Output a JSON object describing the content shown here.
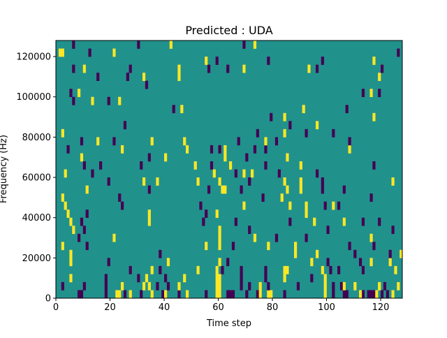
{
  "chart_data": {
    "type": "heatmap",
    "title": "Predicted : UDA",
    "xlabel": "Time step",
    "ylabel": "Frequency (Hz)",
    "xlim": [
      0,
      128
    ],
    "ylim": [
      0,
      128000
    ],
    "xticks": [
      "0",
      "20",
      "40",
      "60",
      "80",
      "100",
      "120"
    ],
    "xtick_values": [
      0,
      20,
      40,
      60,
      80,
      100,
      120
    ],
    "yticks": [
      "0",
      "20000",
      "40000",
      "60000",
      "80000",
      "100000",
      "120000"
    ],
    "ytick_values": [
      0,
      20000,
      40000,
      60000,
      80000,
      100000,
      120000
    ],
    "n_time_steps": 128,
    "n_freq_bins": 32,
    "freq_bin_hz": 4000,
    "colors": {
      "-1": "#440154",
      "0": "#21918c",
      "1": "#fde725"
    },
    "default_value": 0,
    "rows_note_values": "per frequency bin (0 = lowest): time steps with value -1 (neg) and +1 (pos)",
    "rows": [
      {
        "bin": 0,
        "neg": [
          8,
          9,
          18,
          25,
          31,
          39,
          45,
          55,
          63,
          64,
          65,
          70,
          74,
          84,
          102,
          106,
          107,
          113,
          115,
          116,
          117,
          120,
          122
        ],
        "pos": [
          22,
          23,
          27,
          35,
          40,
          48,
          59,
          60,
          75,
          78,
          79,
          99,
          112,
          118,
          124
        ]
      },
      {
        "bin": 1,
        "neg": [
          2,
          10,
          18,
          37,
          41,
          68,
          71,
          78,
          89,
          102,
          105,
          121
        ],
        "pos": [
          24,
          32,
          34,
          45,
          59,
          60,
          75,
          99,
          106,
          110,
          119,
          126
        ]
      },
      {
        "bin": 2,
        "neg": [
          18,
          30,
          40,
          68,
          77,
          94
        ],
        "pos": [
          5,
          33,
          47,
          59,
          60,
          84,
          99
        ]
      },
      {
        "bin": 3,
        "neg": [
          27,
          38,
          61,
          68,
          77,
          101,
          104,
          113
        ],
        "pos": [
          35,
          52,
          59,
          84,
          85,
          98,
          125
        ]
      },
      {
        "bin": 4,
        "neg": [
          19,
          63,
          100,
          112
        ],
        "pos": [
          5,
          41,
          60,
          94,
          116,
          123
        ]
      },
      {
        "bin": 5,
        "neg": [
          38,
          110,
          123
        ],
        "pos": [
          5,
          88,
          96,
          127
        ]
      },
      {
        "bin": 6,
        "neg": [
          11,
          65,
          108,
          117
        ],
        "pos": [
          2,
          55,
          60,
          78,
          88
        ]
      },
      {
        "bin": 7,
        "neg": [
          8,
          81,
          92
        ],
        "pos": [
          21,
          60,
          73,
          116
        ]
      },
      {
        "bin": 8,
        "neg": [
          10,
          71,
          100,
          124
        ],
        "pos": [
          6,
          60
        ]
      },
      {
        "bin": 9,
        "neg": [
          9,
          54,
          66,
          86,
          113,
          119
        ],
        "pos": [
          5,
          34,
          95,
          106
        ]
      },
      {
        "bin": 10,
        "neg": [
          11,
          55
        ],
        "pos": [
          4,
          34,
          59,
          92
        ]
      },
      {
        "bin": 11,
        "neg": [
          24,
          53,
          99,
          104
        ],
        "pos": [
          3,
          69,
          86,
          92,
          102
        ]
      },
      {
        "bin": 12,
        "neg": [
          23,
          76,
          116
        ],
        "pos": [
          2,
          83
        ]
      },
      {
        "bin": 13,
        "neg": [
          34,
          56,
          68,
          98,
          106
        ],
        "pos": [
          11,
          61,
          62,
          85,
          90
        ]
      },
      {
        "bin": 14,
        "neg": [
          19,
          71,
          98
        ],
        "pos": [
          32,
          37,
          52,
          60,
          84,
          90,
          124
        ]
      },
      {
        "bin": 15,
        "neg": [
          13,
          66,
          82,
          96
        ],
        "pos": [
          3,
          58,
          69,
          72
        ]
      },
      {
        "bin": 16,
        "neg": [
          10,
          16,
          31,
          57,
          77,
          117
        ],
        "pos": [
          51,
          64,
          90
        ]
      },
      {
        "bin": 17,
        "neg": [
          34,
          70
        ],
        "pos": [
          9,
          40,
          62,
          85
        ]
      },
      {
        "bin": 18,
        "neg": [
          4,
          57,
          60,
          73,
          77
        ],
        "pos": [
          24,
          48,
          62,
          108
        ]
      },
      {
        "bin": 19,
        "neg": [
          9,
          21,
          67,
          81,
          108
        ],
        "pos": [
          15,
          35,
          47,
          77
        ]
      },
      {
        "bin": 20,
        "neg": [
          74,
          92,
          102
        ],
        "pos": [
          2,
          84
        ]
      },
      {
        "bin": 21,
        "neg": [
          25,
          86
        ],
        "pos": [
          96
        ]
      },
      {
        "bin": 22,
        "neg": [
          79
        ],
        "pos": [
          84,
          117
        ]
      },
      {
        "bin": 23,
        "neg": [
          43,
          107
        ],
        "pos": [
          46,
          91
        ]
      },
      {
        "bin": 24,
        "neg": [
          6,
          19
        ],
        "pos": [
          13,
          23
        ]
      },
      {
        "bin": 25,
        "neg": [
          5,
          113,
          119
        ],
        "pos": [
          8,
          116
        ]
      },
      {
        "bin": 26,
        "neg": [
          33
        ],
        "pos": []
      },
      {
        "bin": 27,
        "neg": [
          15,
          26
        ],
        "pos": [
          32,
          45,
          119
        ]
      },
      {
        "bin": 28,
        "neg": [
          6,
          27,
          56,
          63,
          96,
          120
        ],
        "pos": [
          10,
          45,
          69,
          93
        ]
      },
      {
        "bin": 29,
        "neg": [
          59,
          78,
          98
        ],
        "pos": [
          55,
          117
        ]
      },
      {
        "bin": 30,
        "neg": [
          12,
          126
        ],
        "pos": [
          1,
          2,
          21
        ]
      },
      {
        "bin": 31,
        "neg": [
          6,
          30,
          69
        ],
        "pos": [
          42,
          73
        ]
      }
    ]
  }
}
